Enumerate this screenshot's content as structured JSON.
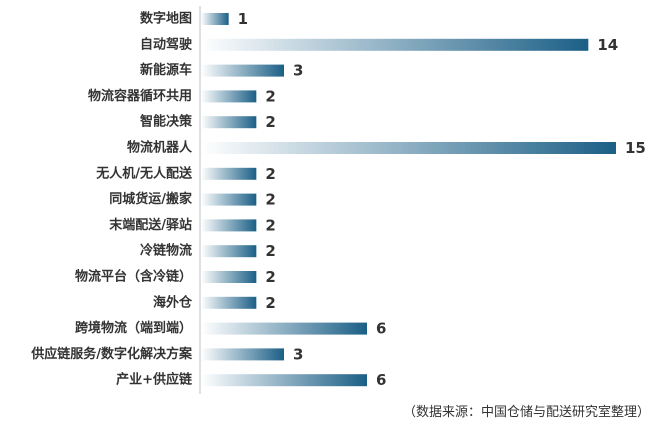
{
  "chart_data": {
    "type": "bar",
    "orientation": "horizontal",
    "title": "",
    "xlabel": "",
    "ylabel": "",
    "categories": [
      "数字地图",
      "自动驾驶",
      "新能源车",
      "物流容器循环共用",
      "智能决策",
      "物流机器人",
      "无人机/无人配送",
      "同城货运/搬家",
      "末端配送/驿站",
      "冷链物流",
      "物流平台（含冷链）",
      "海外仓",
      "跨境物流（端到端）",
      "供应链服务/数字化解决方案",
      "产业+供应链"
    ],
    "values": [
      1,
      14,
      3,
      2,
      2,
      15,
      2,
      2,
      2,
      2,
      2,
      2,
      6,
      3,
      6
    ],
    "xlim": [
      0,
      15
    ],
    "grid": false,
    "legend": "none",
    "bar_color_start": "#ffffff",
    "bar_color_end": "#1b5f86",
    "axis_color": "#bfbfbf"
  },
  "source_note": "（数据来源：中国仓储与配送研究室整理）"
}
